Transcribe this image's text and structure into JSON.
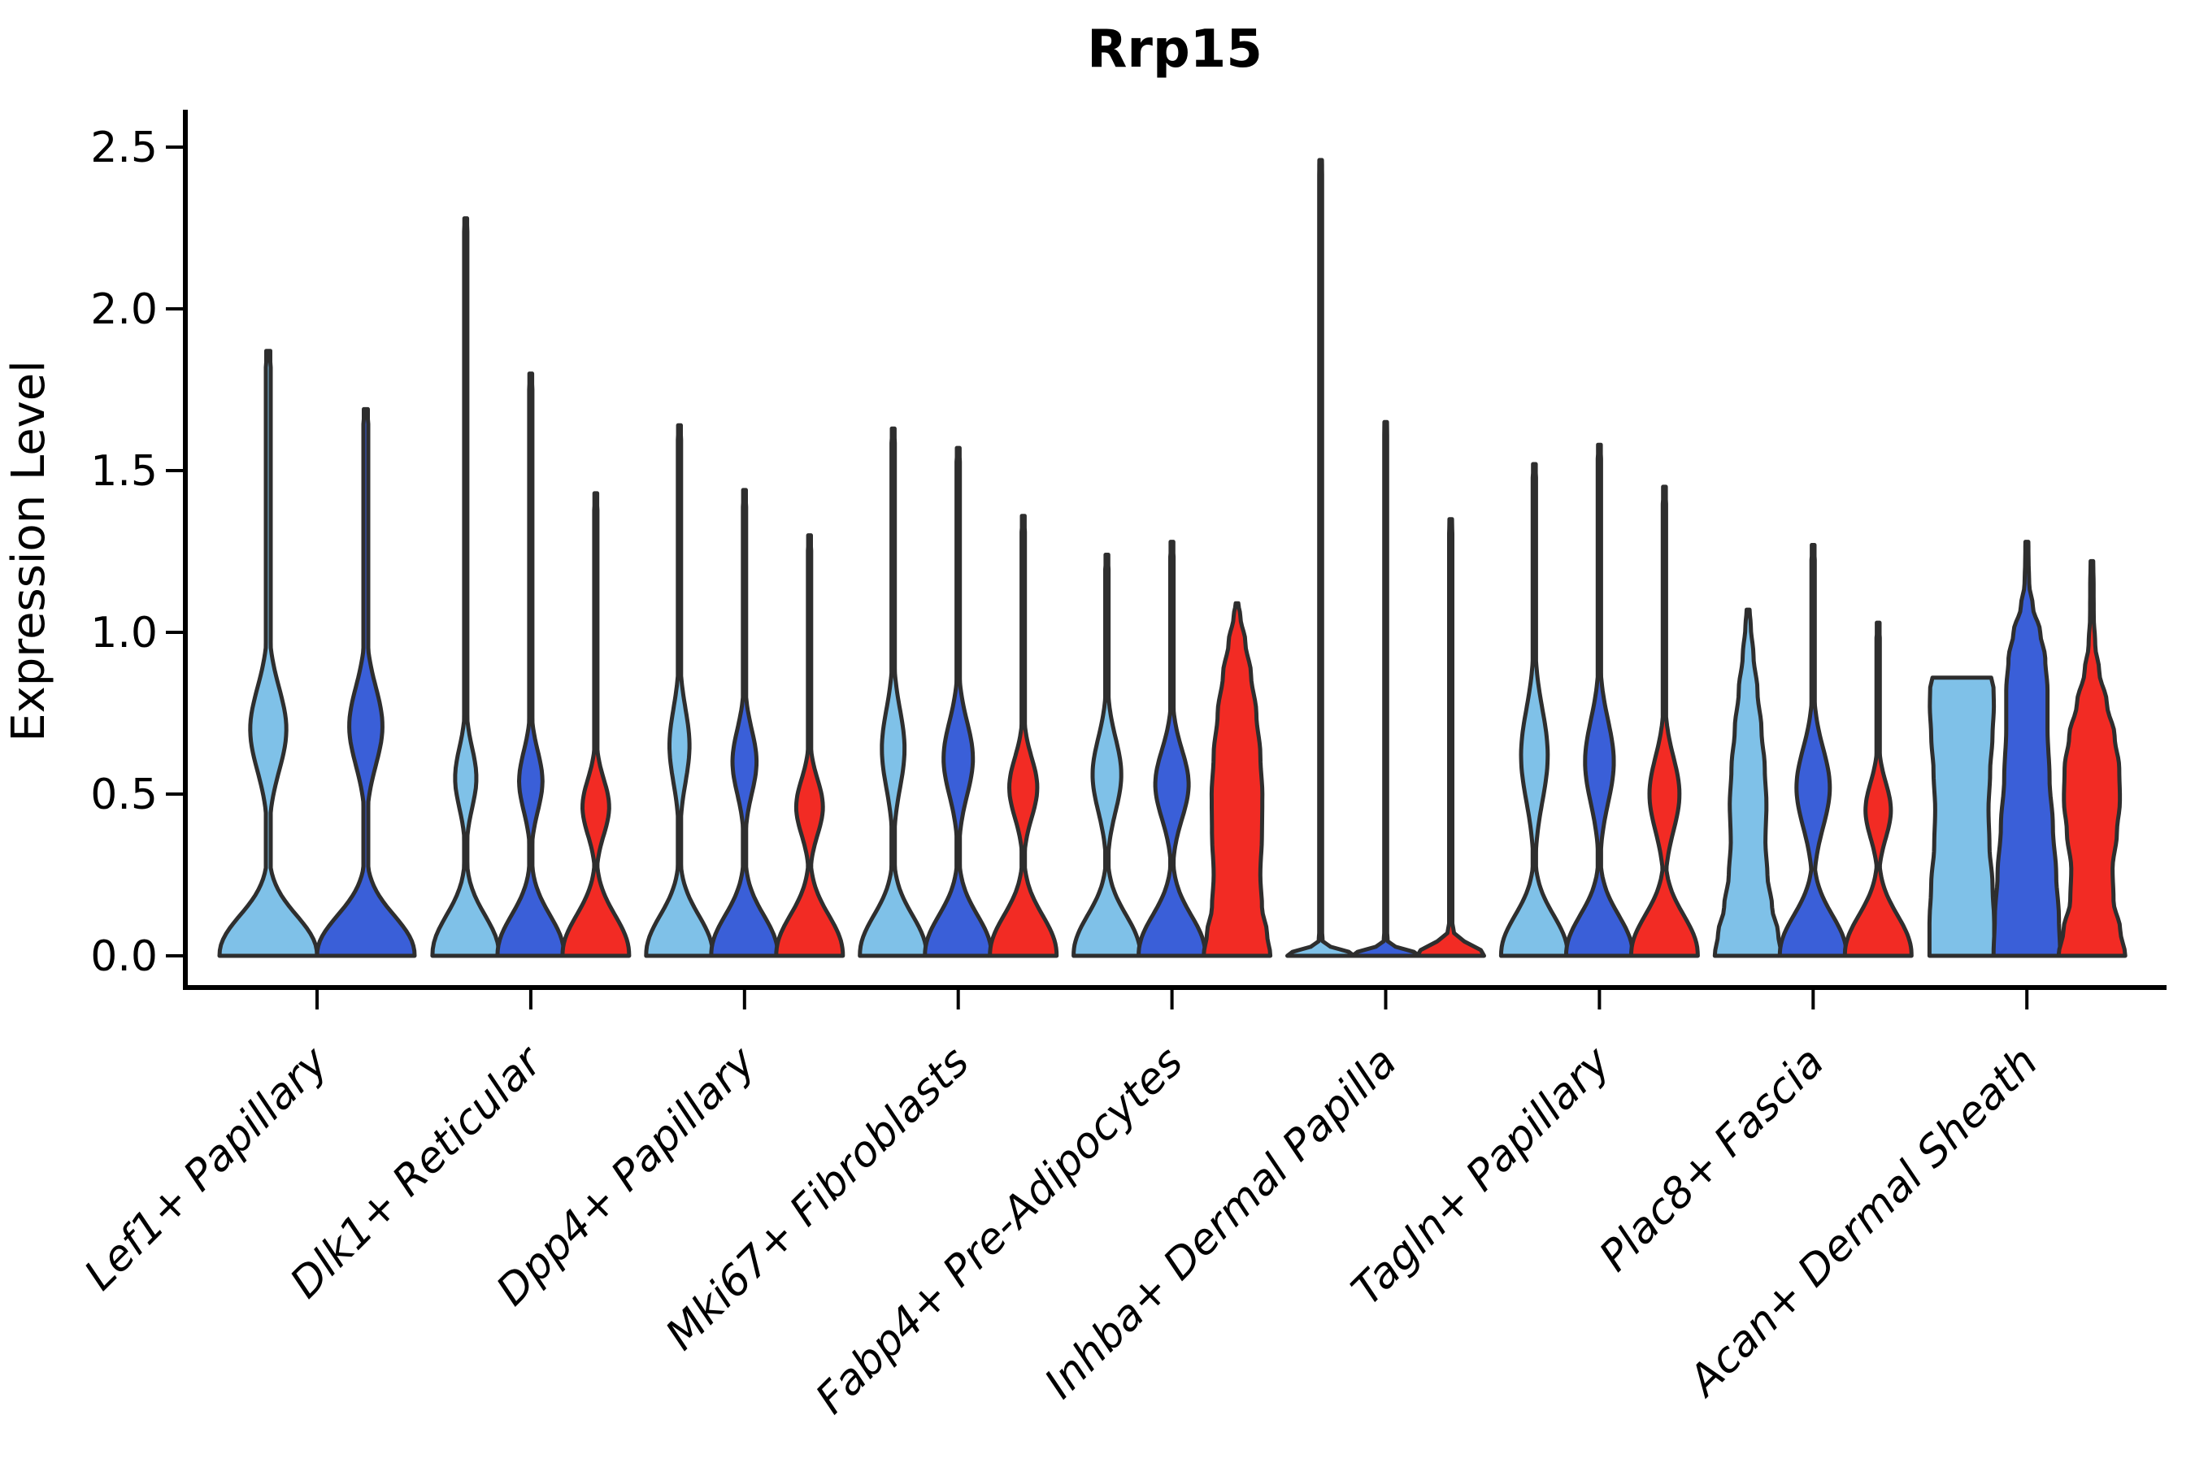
{
  "title": "Rrp15",
  "ylabel": "Expression Level",
  "chart_data": {
    "type": "violin",
    "title": "Rrp15",
    "xlabel": "",
    "ylabel": "Expression Level",
    "ylim": [
      0,
      2.5
    ],
    "yticks": [
      0.0,
      0.5,
      1.0,
      1.5,
      2.0,
      2.5
    ],
    "ytick_labels": [
      "0.0",
      "0.5",
      "1.0",
      "1.5",
      "2.0",
      "2.5"
    ],
    "grid": false,
    "legend": "none",
    "categories": [
      "Lef1+ Papillary",
      "Dlk1+ Reticular",
      "Dpp4+ Papillary",
      "Mki67+ Fibroblasts",
      "Fabp4+ Pre-Adipocytes",
      "Inhba+ Dermal Papilla",
      "Tagln+ Papillary",
      "Plac8+ Fascia",
      "Acan+ Dermal Sheath"
    ],
    "hues": {
      "lightblue": "#7FC1E8",
      "blue": "#3A5FD8",
      "red": "#F22B24"
    },
    "edge_color": "#2E2E2E",
    "groups": [
      {
        "category": "Lef1+ Papillary",
        "violins": [
          {
            "hue": "lightblue",
            "max": 1.87,
            "bulge": {
              "center": 0.7,
              "amp": 0.37,
              "sigma": 0.18
            }
          },
          {
            "hue": "blue",
            "max": 1.69,
            "bulge": {
              "center": 0.71,
              "amp": 0.34,
              "sigma": 0.17
            }
          }
        ]
      },
      {
        "category": "Dlk1+ Reticular",
        "violins": [
          {
            "hue": "lightblue",
            "max": 2.28,
            "bulge": {
              "center": 0.55,
              "amp": 0.32,
              "sigma": 0.13
            }
          },
          {
            "hue": "blue",
            "max": 1.8,
            "bulge": {
              "center": 0.54,
              "amp": 0.35,
              "sigma": 0.13
            }
          },
          {
            "hue": "red",
            "max": 1.43,
            "bulge": {
              "center": 0.46,
              "amp": 0.4,
              "sigma": 0.12
            }
          }
        ]
      },
      {
        "category": "Dpp4+ Papillary",
        "violins": [
          {
            "hue": "lightblue",
            "max": 1.64,
            "bulge": {
              "center": 0.65,
              "amp": 0.3,
              "sigma": 0.16
            }
          },
          {
            "hue": "blue",
            "max": 1.44,
            "bulge": {
              "center": 0.6,
              "amp": 0.36,
              "sigma": 0.14
            }
          },
          {
            "hue": "red",
            "max": 1.3,
            "bulge": {
              "center": 0.46,
              "amp": 0.4,
              "sigma": 0.12
            }
          }
        ]
      },
      {
        "category": "Mki67+ Fibroblasts",
        "violins": [
          {
            "hue": "lightblue",
            "max": 1.63,
            "bulge": {
              "center": 0.64,
              "amp": 0.34,
              "sigma": 0.17
            }
          },
          {
            "hue": "blue",
            "max": 1.57,
            "bulge": {
              "center": 0.61,
              "amp": 0.44,
              "sigma": 0.16
            }
          },
          {
            "hue": "red",
            "max": 1.36,
            "bulge": {
              "center": 0.52,
              "amp": 0.42,
              "sigma": 0.13
            }
          }
        ]
      },
      {
        "category": "Fabp4+ Pre-Adipocytes",
        "violins": [
          {
            "hue": "lightblue",
            "max": 1.24,
            "bulge": {
              "center": 0.56,
              "amp": 0.43,
              "sigma": 0.16
            }
          },
          {
            "hue": "blue",
            "max": 1.28,
            "bulge": {
              "center": 0.53,
              "amp": 0.5,
              "sigma": 0.15
            }
          },
          {
            "hue": "red",
            "max": 1.09,
            "profile": [
              [
                0,
                1
              ],
              [
                0.07,
                0.9
              ],
              [
                0.15,
                0.75
              ],
              [
                0.25,
                0.7
              ],
              [
                0.38,
                0.75
              ],
              [
                0.5,
                0.76
              ],
              [
                0.62,
                0.7
              ],
              [
                0.75,
                0.58
              ],
              [
                0.87,
                0.42
              ],
              [
                0.97,
                0.25
              ],
              [
                1.05,
                0.1
              ],
              [
                1.09,
                0.04
              ]
            ]
          }
        ]
      },
      {
        "category": "Inhba+ Dermal Papilla",
        "violins": [
          {
            "hue": "lightblue",
            "max": 2.46,
            "profile": [
              [
                0,
                1
              ],
              [
                0.012,
                0.85
              ],
              [
                0.028,
                0.3
              ],
              [
                0.045,
                0.06
              ],
              [
                0.07,
                0.045
              ],
              [
                2.4,
                0.045
              ],
              [
                2.46,
                0.04
              ]
            ]
          },
          {
            "hue": "blue",
            "max": 1.65,
            "profile": [
              [
                0,
                1
              ],
              [
                0.012,
                0.85
              ],
              [
                0.028,
                0.3
              ],
              [
                0.045,
                0.06
              ],
              [
                0.07,
                0.045
              ],
              [
                1.59,
                0.045
              ],
              [
                1.65,
                0.04
              ]
            ]
          },
          {
            "hue": "red",
            "max": 1.35,
            "profile": [
              [
                0,
                1
              ],
              [
                0.018,
                0.9
              ],
              [
                0.045,
                0.4
              ],
              [
                0.07,
                0.1
              ],
              [
                0.1,
                0.05
              ],
              [
                1.29,
                0.05
              ],
              [
                1.35,
                0.04
              ]
            ]
          }
        ]
      },
      {
        "category": "Tagln+ Papillary",
        "violins": [
          {
            "hue": "lightblue",
            "max": 1.52,
            "bulge": {
              "center": 0.62,
              "amp": 0.4,
              "sigma": 0.2
            }
          },
          {
            "hue": "blue",
            "max": 1.58,
            "bulge": {
              "center": 0.6,
              "amp": 0.43,
              "sigma": 0.18
            }
          },
          {
            "hue": "red",
            "max": 1.45,
            "bulge": {
              "center": 0.5,
              "amp": 0.45,
              "sigma": 0.16
            }
          }
        ]
      },
      {
        "category": "Plac8+ Fascia",
        "violins": [
          {
            "hue": "lightblue",
            "max": 1.07,
            "profile": [
              [
                0,
                1
              ],
              [
                0.07,
                0.9
              ],
              [
                0.15,
                0.72
              ],
              [
                0.25,
                0.58
              ],
              [
                0.35,
                0.52
              ],
              [
                0.47,
                0.55
              ],
              [
                0.58,
                0.5
              ],
              [
                0.7,
                0.4
              ],
              [
                0.82,
                0.28
              ],
              [
                0.93,
                0.16
              ],
              [
                1.02,
                0.08
              ],
              [
                1.07,
                0.045
              ]
            ]
          },
          {
            "hue": "blue",
            "max": 1.27,
            "bulge": {
              "center": 0.52,
              "amp": 0.5,
              "sigma": 0.17
            }
          },
          {
            "hue": "red",
            "max": 1.03,
            "bulge": {
              "center": 0.45,
              "amp": 0.38,
              "sigma": 0.12
            }
          }
        ]
      },
      {
        "category": "Acan+ Dermal Sheath",
        "violins": [
          {
            "hue": "lightblue",
            "max": 0.86,
            "flat_top": true,
            "profile": [
              [
                0,
                0.97
              ],
              [
                0.1,
                0.97
              ],
              [
                0.22,
                0.92
              ],
              [
                0.34,
                0.83
              ],
              [
                0.45,
                0.8
              ],
              [
                0.57,
                0.85
              ],
              [
                0.68,
                0.92
              ],
              [
                0.77,
                0.96
              ],
              [
                0.83,
                0.95
              ],
              [
                0.86,
                0.88
              ]
            ]
          },
          {
            "hue": "blue",
            "max": 1.28,
            "profile": [
              [
                0,
                1
              ],
              [
                0.12,
                0.96
              ],
              [
                0.25,
                0.88
              ],
              [
                0.4,
                0.78
              ],
              [
                0.55,
                0.68
              ],
              [
                0.7,
                0.62
              ],
              [
                0.82,
                0.62
              ],
              [
                0.92,
                0.55
              ],
              [
                1.0,
                0.4
              ],
              [
                1.08,
                0.18
              ],
              [
                1.15,
                0.07
              ],
              [
                1.22,
                0.05
              ],
              [
                1.28,
                0.045
              ]
            ]
          },
          {
            "hue": "red",
            "max": 1.22,
            "profile": [
              [
                0,
                1
              ],
              [
                0.08,
                0.85
              ],
              [
                0.17,
                0.65
              ],
              [
                0.27,
                0.62
              ],
              [
                0.38,
                0.75
              ],
              [
                0.48,
                0.84
              ],
              [
                0.58,
                0.82
              ],
              [
                0.68,
                0.68
              ],
              [
                0.78,
                0.45
              ],
              [
                0.88,
                0.22
              ],
              [
                0.96,
                0.1
              ],
              [
                1.05,
                0.055
              ],
              [
                1.15,
                0.05
              ],
              [
                1.22,
                0.04
              ]
            ]
          }
        ]
      }
    ]
  }
}
